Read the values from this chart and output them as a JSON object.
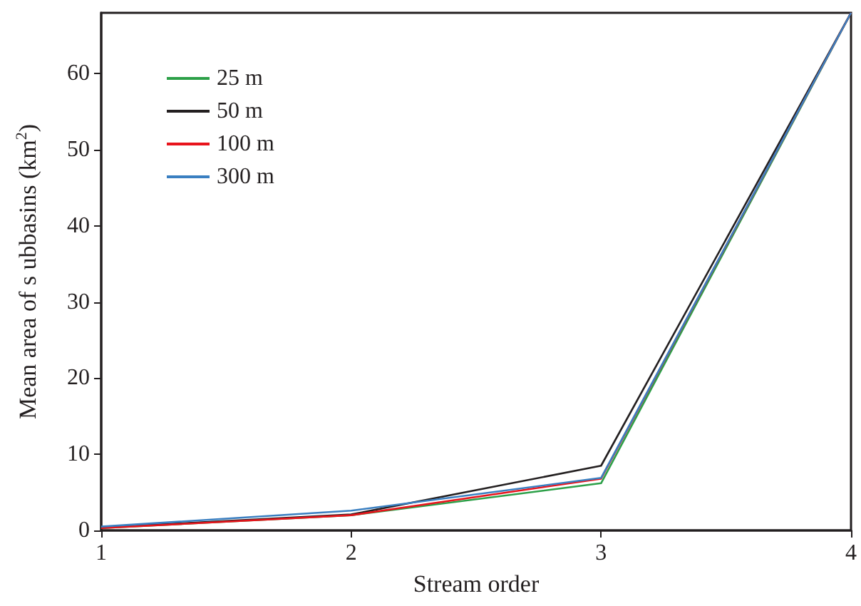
{
  "chart_data": {
    "type": "line",
    "xlabel": "Stream order",
    "ylabel": "Mean area of s ubbasins (km$^{2}$)",
    "x": [
      1,
      2,
      3,
      4
    ],
    "xlim": [
      1,
      4
    ],
    "xticks": [
      1,
      2,
      3,
      4
    ],
    "ylim": [
      0,
      68
    ],
    "yticks": [
      0,
      10,
      20,
      30,
      40,
      50,
      60
    ],
    "series": [
      {
        "name": "25 m",
        "color": "#2ca048",
        "values": [
          0.3,
          2.0,
          6.2,
          68
        ]
      },
      {
        "name": "50 m",
        "color": "#231f20",
        "values": [
          0.4,
          2.1,
          8.5,
          68
        ]
      },
      {
        "name": "100 m",
        "color": "#e8141c",
        "values": [
          0.3,
          2.0,
          6.8,
          68
        ]
      },
      {
        "name": "300 m",
        "color": "#3a7fc1",
        "values": [
          0.5,
          2.6,
          6.9,
          68
        ]
      }
    ],
    "grid": false,
    "legend": "top left",
    "marker": "none",
    "line_style": "solid"
  }
}
